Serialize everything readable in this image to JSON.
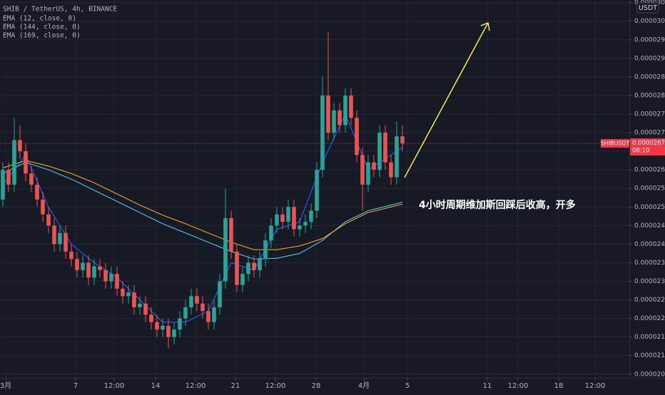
{
  "chart_data": {
    "type": "candlestick",
    "symbol": "SHIB / TetherUS, 4h, BINANCE",
    "currency": "USDT",
    "annotation": "4小时周期维加斯回踩后收高，开多",
    "up_color": "#26a69a",
    "down_color": "#ef5350",
    "grid": true,
    "xlim": [
      -0.5,
      109.75
    ],
    "ylim": [
      2.04e-05,
      3.057e-05
    ],
    "xticks": [
      {
        "value": 0.5,
        "label": "3月"
      },
      {
        "value": 12.75,
        "label": "7"
      },
      {
        "value": 19.5,
        "label": "12:00"
      },
      {
        "value": 26.75,
        "label": "14"
      },
      {
        "value": 33.75,
        "label": "12:00"
      },
      {
        "value": 40.75,
        "label": "21"
      },
      {
        "value": 47.75,
        "label": "12:00"
      },
      {
        "value": 54.875,
        "label": "28"
      },
      {
        "value": 63.25,
        "label": "4月"
      },
      {
        "value": 70.875,
        "label": "5"
      },
      {
        "value": 84.875,
        "label": "11"
      },
      {
        "value": 90.25,
        "label": "12:00"
      },
      {
        "value": 97.375,
        "label": "18"
      },
      {
        "value": 103.75,
        "label": "12:00"
      }
    ],
    "yticks": [
      {
        "value": 3.05e-05,
        "label": "0.00003050"
      },
      {
        "value": 3e-05,
        "label": "0.00003000"
      },
      {
        "value": 2.95e-05,
        "label": "0.00002950"
      },
      {
        "value": 2.9e-05,
        "label": "0.00002900"
      },
      {
        "value": 2.85e-05,
        "label": "0.00002850"
      },
      {
        "value": 2.8e-05,
        "label": "0.00002800"
      },
      {
        "value": 2.75e-05,
        "label": "0.00002750"
      },
      {
        "value": 2.7e-05,
        "label": "0.00002700"
      },
      {
        "value": 2.65e-05,
        "label": "0.00002650"
      },
      {
        "value": 2.6e-05,
        "label": "0.00002600"
      },
      {
        "value": 2.55e-05,
        "label": "0.00002550"
      },
      {
        "value": 2.5e-05,
        "label": "0.00002500"
      },
      {
        "value": 2.45e-05,
        "label": "0.00002450"
      },
      {
        "value": 2.4e-05,
        "label": "0.00002400"
      },
      {
        "value": 2.35e-05,
        "label": "0.00002350"
      },
      {
        "value": 2.3e-05,
        "label": "0.00002300"
      },
      {
        "value": 2.25e-05,
        "label": "0.00002250"
      },
      {
        "value": 2.2e-05,
        "label": "0.00002200"
      },
      {
        "value": 2.15e-05,
        "label": "0.00002150"
      },
      {
        "value": 2.1e-05,
        "label": "0.00002100"
      },
      {
        "value": 2.05e-05,
        "label": "0.00002050"
      }
    ],
    "last_price": {
      "name": "SHIBUSDT",
      "value": 2.671e-05,
      "label": "0.00002671",
      "countdown": "08:10",
      "color": "#f23645"
    },
    "candles": {
      "open": [
        2.52e-05,
        2.6e-05,
        2.56e-05,
        2.68e-05,
        2.65e-05,
        2.59e-05,
        2.56e-05,
        2.52e-05,
        2.48e-05,
        2.45e-05,
        2.4e-05,
        2.43e-05,
        2.38e-05,
        2.36e-05,
        2.33e-05,
        2.35e-05,
        2.31e-05,
        2.34e-05,
        2.33e-05,
        2.3e-05,
        2.32e-05,
        2.28e-05,
        2.26e-05,
        2.27e-05,
        2.23e-05,
        2.24e-05,
        2.21e-05,
        2.19e-05,
        2.17e-05,
        2.18e-05,
        2.15e-05,
        2.17e-05,
        2.2e-05,
        2.23e-05,
        2.26e-05,
        2.24e-05,
        2.22e-05,
        2.19e-05,
        2.23e-05,
        2.3e-05,
        2.47e-05,
        2.38e-05,
        2.29e-05,
        2.32e-05,
        2.35e-05,
        2.33e-05,
        2.36e-05,
        2.41e-05,
        2.45e-05,
        2.48e-05,
        2.46e-05,
        2.5e-05,
        2.44e-05,
        2.45e-05,
        2.46e-05,
        2.49e-05,
        2.6e-05,
        2.8e-05,
        2.7e-05,
        2.76e-05,
        2.72e-05,
        2.8e-05,
        2.74e-05,
        2.64e-05,
        2.56e-05,
        2.62e-05,
        2.6e-05,
        2.7e-05,
        2.62e-05,
        2.58e-05,
        2.69e-05
      ],
      "high": [
        2.62e-05,
        2.62e-05,
        2.74e-05,
        2.72e-05,
        2.67e-05,
        2.61e-05,
        2.58e-05,
        2.54e-05,
        2.5e-05,
        2.47e-05,
        2.45e-05,
        2.45e-05,
        2.4e-05,
        2.38e-05,
        2.37e-05,
        2.37e-05,
        2.36e-05,
        2.36e-05,
        2.35e-05,
        2.34e-05,
        2.34e-05,
        2.3e-05,
        2.29e-05,
        2.29e-05,
        2.26e-05,
        2.26e-05,
        2.23e-05,
        2.21e-05,
        2.2e-05,
        2.2e-05,
        2.19e-05,
        2.22e-05,
        2.25e-05,
        2.28e-05,
        2.28e-05,
        2.26e-05,
        2.24e-05,
        2.25e-05,
        2.32e-05,
        2.55e-05,
        2.49e-05,
        2.4e-05,
        2.34e-05,
        2.37e-05,
        2.37e-05,
        2.38e-05,
        2.43e-05,
        2.47e-05,
        2.5e-05,
        2.5e-05,
        2.52e-05,
        2.52e-05,
        2.47e-05,
        2.48e-05,
        2.51e-05,
        2.62e-05,
        2.85e-05,
        2.97e-05,
        2.78e-05,
        2.78e-05,
        2.82e-05,
        2.82e-05,
        2.76e-05,
        2.66e-05,
        2.64e-05,
        2.64e-05,
        2.72e-05,
        2.72e-05,
        2.64e-05,
        2.73e-05,
        2.72e-05
      ],
      "low": [
        2.5e-05,
        2.54e-05,
        2.54e-05,
        2.63e-05,
        2.57e-05,
        2.54e-05,
        2.5e-05,
        2.46e-05,
        2.43e-05,
        2.38e-05,
        2.38e-05,
        2.36e-05,
        2.34e-05,
        2.31e-05,
        2.31e-05,
        2.29e-05,
        2.29e-05,
        2.31e-05,
        2.28e-05,
        2.28e-05,
        2.26e-05,
        2.24e-05,
        2.24e-05,
        2.21e-05,
        2.21e-05,
        2.19e-05,
        2.17e-05,
        2.15e-05,
        2.15e-05,
        2.12e-05,
        2.13e-05,
        2.15e-05,
        2.18e-05,
        2.21e-05,
        2.22e-05,
        2.2e-05,
        2.17e-05,
        2.17e-05,
        2.21e-05,
        2.28e-05,
        2.36e-05,
        2.27e-05,
        2.27e-05,
        2.3e-05,
        2.31e-05,
        2.31e-05,
        2.34e-05,
        2.39e-05,
        2.43e-05,
        2.44e-05,
        2.44e-05,
        2.42e-05,
        2.42e-05,
        2.43e-05,
        2.44e-05,
        2.47e-05,
        2.58e-05,
        2.68e-05,
        2.68e-05,
        2.7e-05,
        2.7e-05,
        2.72e-05,
        2.62e-05,
        2.49e-05,
        2.54e-05,
        2.58e-05,
        2.58e-05,
        2.6e-05,
        2.56e-05,
        2.56e-05,
        2.65e-05
      ],
      "close": [
        2.6e-05,
        2.56e-05,
        2.68e-05,
        2.65e-05,
        2.59e-05,
        2.56e-05,
        2.52e-05,
        2.48e-05,
        2.45e-05,
        2.4e-05,
        2.43e-05,
        2.38e-05,
        2.36e-05,
        2.33e-05,
        2.35e-05,
        2.31e-05,
        2.34e-05,
        2.33e-05,
        2.3e-05,
        2.32e-05,
        2.28e-05,
        2.26e-05,
        2.27e-05,
        2.23e-05,
        2.24e-05,
        2.21e-05,
        2.19e-05,
        2.17e-05,
        2.18e-05,
        2.15e-05,
        2.17e-05,
        2.2e-05,
        2.23e-05,
        2.26e-05,
        2.24e-05,
        2.22e-05,
        2.19e-05,
        2.23e-05,
        2.3e-05,
        2.47e-05,
        2.38e-05,
        2.29e-05,
        2.32e-05,
        2.35e-05,
        2.33e-05,
        2.36e-05,
        2.41e-05,
        2.45e-05,
        2.48e-05,
        2.46e-05,
        2.5e-05,
        2.44e-05,
        2.45e-05,
        2.46e-05,
        2.49e-05,
        2.6e-05,
        2.8e-05,
        2.7e-05,
        2.76e-05,
        2.72e-05,
        2.8e-05,
        2.74e-05,
        2.64e-05,
        2.56e-05,
        2.62e-05,
        2.6e-05,
        2.7e-05,
        2.62e-05,
        2.58e-05,
        2.69e-05,
        2.671e-05
      ]
    },
    "series": [
      {
        "name": "EMA (12, close, 0)",
        "color": "#2962ff",
        "x": [
          0,
          4,
          8,
          12,
          16,
          20,
          24,
          28,
          32,
          36,
          40,
          44,
          48,
          52,
          56,
          60,
          64,
          68,
          70
        ],
        "values": [
          2.56e-05,
          2.64e-05,
          2.5e-05,
          2.4e-05,
          2.35e-05,
          2.31e-05,
          2.25e-05,
          2.19e-05,
          2.19e-05,
          2.22e-05,
          2.35e-05,
          2.33e-05,
          2.44e-05,
          2.46e-05,
          2.62e-05,
          2.75e-05,
          2.6e-05,
          2.64e-05,
          2.66e-05
        ]
      },
      {
        "name": "EMA (144, close, 0)",
        "color": "#4fc3f7",
        "x": [
          0,
          4,
          8,
          12,
          16,
          20,
          24,
          28,
          32,
          36,
          40,
          44,
          48,
          52,
          56,
          60,
          64,
          68,
          70
        ],
        "values": [
          2.59e-05,
          2.62e-05,
          2.6e-05,
          2.575e-05,
          2.545e-05,
          2.515e-05,
          2.485e-05,
          2.455e-05,
          2.43e-05,
          2.405e-05,
          2.38e-05,
          2.36e-05,
          2.362e-05,
          2.375e-05,
          2.41e-05,
          2.46e-05,
          2.49e-05,
          2.505e-05,
          2.513e-05
        ]
      },
      {
        "name": "EMA (169, close, 0)",
        "color": "#f7a21b",
        "x": [
          0,
          4,
          8,
          12,
          16,
          20,
          24,
          28,
          32,
          36,
          40,
          44,
          48,
          52,
          56,
          60,
          64,
          68,
          70
        ],
        "values": [
          2.605e-05,
          2.625e-05,
          2.61e-05,
          2.59e-05,
          2.565e-05,
          2.535e-05,
          2.505e-05,
          2.478e-05,
          2.455e-05,
          2.43e-05,
          2.405e-05,
          2.385e-05,
          2.385e-05,
          2.395e-05,
          2.415e-05,
          2.455e-05,
          2.485e-05,
          2.5e-05,
          2.508e-05
        ]
      }
    ]
  }
}
